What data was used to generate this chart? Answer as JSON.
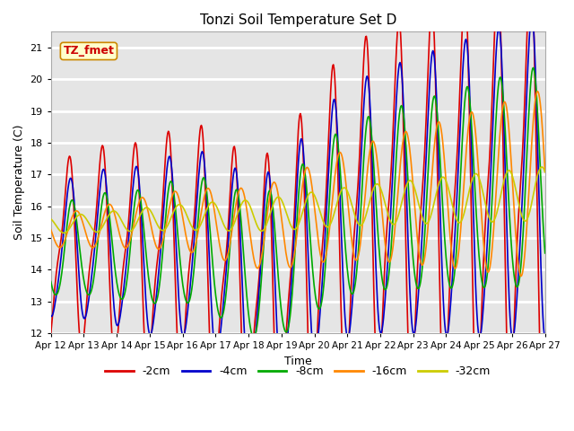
{
  "title": "Tonzi Soil Temperature Set D",
  "xlabel": "Time",
  "ylabel": "Soil Temperature (C)",
  "ylim": [
    12.0,
    21.5
  ],
  "ytick_min": 12.0,
  "ytick_max": 21.0,
  "ytick_step": 1.0,
  "bg_color": "#e5e5e5",
  "grid_color": "white",
  "annotation_text": "TZ_fmet",
  "annotation_color": "#cc0000",
  "annotation_bg": "#ffffcc",
  "annotation_border": "#cc8800",
  "legend_entries": [
    "-2cm",
    "-4cm",
    "-8cm",
    "-16cm",
    "-32cm"
  ],
  "line_colors": [
    "#dd0000",
    "#0000cc",
    "#00aa00",
    "#ff8800",
    "#cccc00"
  ],
  "line_width": 1.2,
  "x_start": 12,
  "x_end": 27,
  "xtick_positions": [
    12,
    13,
    14,
    15,
    16,
    17,
    18,
    19,
    20,
    21,
    22,
    23,
    24,
    25,
    26,
    27
  ],
  "xtick_labels": [
    "Apr 12",
    "Apr 13",
    "Apr 14",
    "Apr 15",
    "Apr 16",
    "Apr 17",
    "Apr 18",
    "Apr 19",
    "Apr 20",
    "Apr 21",
    "Apr 22",
    "Apr 23",
    "Apr 24",
    "Apr 25",
    "Apr 26",
    "Apr 27"
  ]
}
